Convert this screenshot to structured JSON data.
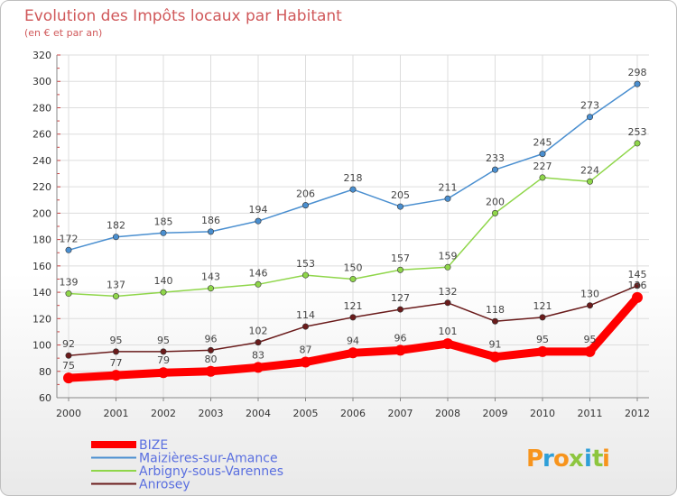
{
  "chart_data": {
    "type": "line",
    "title": "Evolution des Impôts locaux par Habitant",
    "subtitle": "(en € et par an)",
    "categories": [
      "2000",
      "2001",
      "2002",
      "2003",
      "2004",
      "2005",
      "2006",
      "2007",
      "2008",
      "2009",
      "2010",
      "2011",
      "2012"
    ],
    "ylim": [
      60,
      320
    ],
    "yticks": [
      60,
      80,
      100,
      120,
      140,
      160,
      180,
      200,
      220,
      240,
      260,
      280,
      300,
      320
    ],
    "grid": true,
    "legend_position": "bottom-left",
    "series": [
      {
        "name": "BIZE",
        "color": "#ff0000",
        "values": [
          75,
          77,
          79,
          80,
          83,
          87,
          94,
          96,
          101,
          91,
          95,
          95,
          136
        ]
      },
      {
        "name": "Maizières-sur-Amance",
        "color": "#4a8fd0",
        "values": [
          172,
          182,
          185,
          186,
          194,
          206,
          218,
          205,
          211,
          233,
          245,
          273,
          298
        ]
      },
      {
        "name": "Arbigny-sous-Varennes",
        "color": "#8fd64a",
        "values": [
          139,
          137,
          140,
          143,
          146,
          153,
          150,
          157,
          159,
          200,
          227,
          224,
          253
        ]
      },
      {
        "name": "Anrosey",
        "color": "#6a1b1b",
        "values": [
          92,
          95,
          95,
          96,
          102,
          114,
          121,
          127,
          132,
          118,
          121,
          130,
          145
        ]
      }
    ]
  },
  "logo": {
    "text": "Proxiti"
  }
}
